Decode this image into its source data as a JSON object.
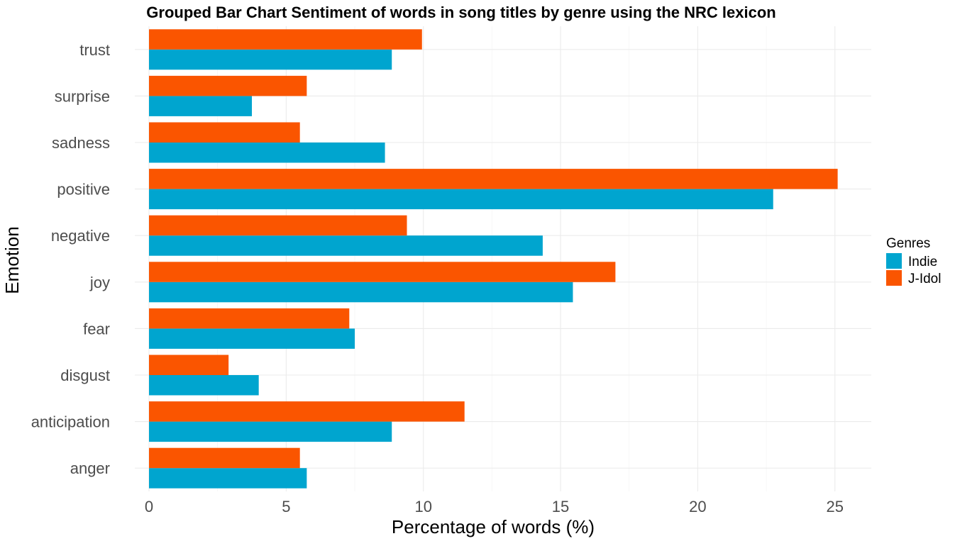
{
  "colors": {
    "background": "#ffffff",
    "grid": "#ebebeb",
    "tick_text": "#4d4d4d"
  },
  "chart_data": {
    "type": "bar",
    "orientation": "horizontal",
    "title": "Grouped Bar Chart Sentiment of words in song titles by genre using the NRC lexicon",
    "xlabel": "Percentage of words (%)",
    "ylabel": "Emotion",
    "categories": [
      "anger",
      "anticipation",
      "disgust",
      "fear",
      "joy",
      "negative",
      "positive",
      "sadness",
      "surprise",
      "trust"
    ],
    "xlim": [
      0,
      26.3
    ],
    "x_ticks": [
      "0",
      "5",
      "10",
      "15",
      "20",
      "25"
    ],
    "grid": true,
    "legend": {
      "title": "Genres",
      "position": "right"
    },
    "series": [
      {
        "name": "Indie",
        "color": "#00a5cf",
        "values": [
          5.75,
          8.85,
          4.0,
          7.5,
          15.45,
          14.35,
          22.75,
          8.6,
          3.75,
          8.85
        ]
      },
      {
        "name": "J-Idol",
        "color": "#fa5500",
        "values": [
          5.5,
          11.5,
          2.9,
          7.3,
          17.0,
          9.4,
          25.1,
          5.5,
          5.75,
          9.95
        ]
      }
    ]
  }
}
